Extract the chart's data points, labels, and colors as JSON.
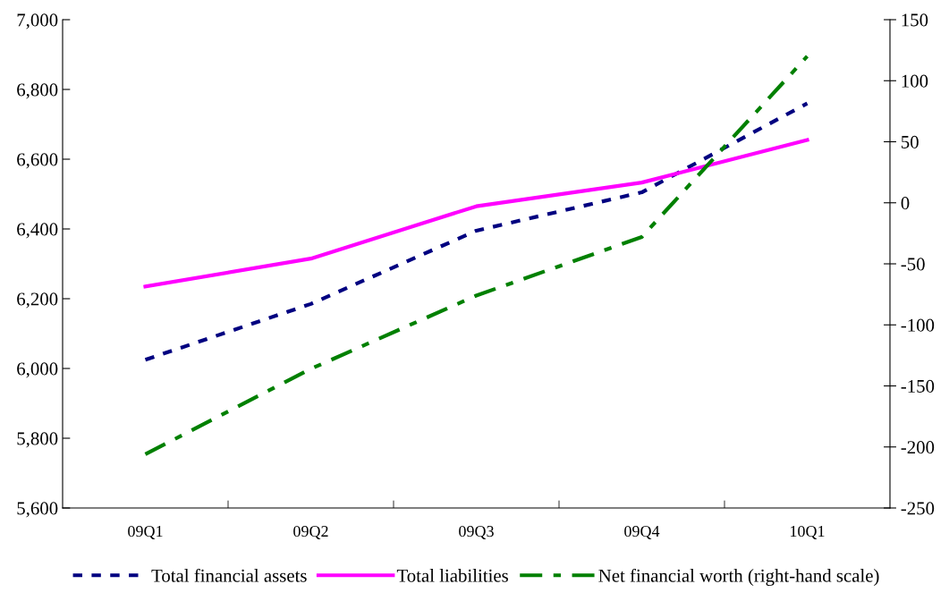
{
  "chart_data": {
    "type": "line",
    "categories": [
      "09Q1",
      "09Q2",
      "09Q3",
      "09Q4",
      "10Q1"
    ],
    "series": [
      {
        "name": "Total financial assets",
        "color": "#000080",
        "line_style": "dashed",
        "values": [
          6025,
          6185,
          6395,
          6505,
          6760
        ]
      },
      {
        "name": "Total liabilities",
        "color": "#ff00ff",
        "line_style": "solid",
        "values": [
          6235,
          6315,
          6465,
          6533,
          6655
        ]
      },
      {
        "name": "Net financial worth (right-hand scale)",
        "color": "#008000",
        "line_style": "dashdot",
        "axis": "y2",
        "values": [
          -206,
          -136,
          -76,
          -28,
          120
        ]
      }
    ],
    "ylim": [
      5600,
      7000
    ],
    "yticks": [
      {
        "value": 5600,
        "label": "5,600"
      },
      {
        "value": 5800,
        "label": "5,800"
      },
      {
        "value": 6000,
        "label": "6,000"
      },
      {
        "value": 6200,
        "label": "6,200"
      },
      {
        "value": 6400,
        "label": "6,400"
      },
      {
        "value": 6600,
        "label": "6,600"
      },
      {
        "value": 6800,
        "label": "6,800"
      },
      {
        "value": 7000,
        "label": "7,000"
      }
    ],
    "y2lim": [
      -250,
      150
    ],
    "y2ticks": [
      -250,
      -200,
      -150,
      -100,
      -50,
      0,
      50,
      100,
      150
    ],
    "grid": false,
    "legend": "bottom",
    "marker": "none"
  }
}
